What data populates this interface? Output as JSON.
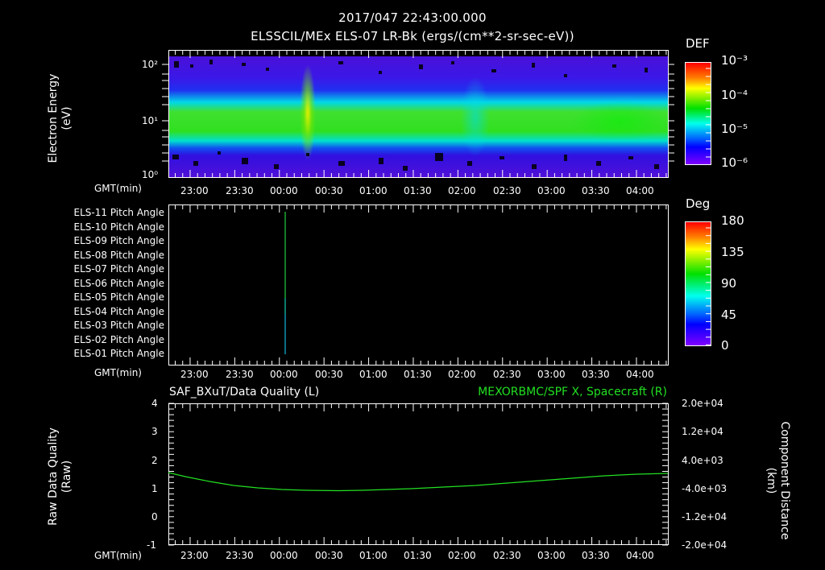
{
  "header": {
    "timestamp": "2017/047 22:43:00.000",
    "subtitle": "ELSSCIL/MEx ELS-07 LR-Bk  (ergs/(cm**2-sr-sec-eV))"
  },
  "panels": {
    "spectrogram": {
      "ylabel_line1": "Electron Energy",
      "ylabel_line2": "(eV)",
      "yticks": [
        "10²",
        "10¹",
        "10⁰"
      ],
      "xlabel": "GMT(min)",
      "colorbar_title": "DEF",
      "colorbar_ticks": [
        "10⁻³",
        "10⁻⁴",
        "10⁻⁵",
        "10⁻⁶"
      ]
    },
    "pitch_angle": {
      "row_labels": [
        "ELS-11 Pitch Angle",
        "ELS-10 Pitch Angle",
        "ELS-09 Pitch Angle",
        "ELS-08 Pitch Angle",
        "ELS-07 Pitch Angle",
        "ELS-06 Pitch Angle",
        "ELS-05 Pitch Angle",
        "ELS-04 Pitch Angle",
        "ELS-03 Pitch Angle",
        "ELS-02 Pitch Angle",
        "ELS-01 Pitch Angle"
      ],
      "xlabel": "GMT(min)",
      "colorbar_title": "Deg",
      "colorbar_ticks": [
        "180",
        "135",
        "90",
        "45",
        "0"
      ]
    },
    "quality": {
      "left_title": "SAF_BXuT/Data Quality (L)",
      "right_title": "MEXORBMC/SPF X, Spacecraft (R)",
      "right_title_color": "#22e022",
      "ylabel_line1": "Raw Data Quality",
      "ylabel_line2": "(Raw)",
      "left_yticks": [
        "4",
        "3",
        "2",
        "1",
        "0",
        "-1"
      ],
      "right_yticks": [
        "2.0e+04",
        "1.2e+04",
        "4.0e+03",
        "-4.0e+03",
        "-1.2e+04",
        "-2.0e+04"
      ],
      "rlabel_line1": "Component Distance",
      "rlabel_line2": "(km)",
      "xlabel": "GMT(min)"
    }
  },
  "time_ticks": [
    "23:00",
    "23:30",
    "00:00",
    "00:30",
    "01:00",
    "01:30",
    "02:00",
    "02:30",
    "03:00",
    "03:30",
    "04:00"
  ],
  "chart_data": [
    {
      "type": "heatmap",
      "title": "ELSSCIL/MEx ELS-07 LR-Bk (ergs/(cm**2-sr-sec-eV))",
      "xlabel": "GMT(min)",
      "ylabel": "Electron Energy (eV)",
      "x_range": [
        "22:43",
        "04:09"
      ],
      "ylim": [
        1,
        180
      ],
      "yscale": "log",
      "colorbar": {
        "label": "DEF",
        "range": [
          1e-06,
          0.001
        ],
        "scale": "log"
      },
      "features": [
        {
          "desc": "persistent band ~4-25 eV peaking near 10 eV at ~1e-4 DEF"
        },
        {
          "desc": "enhancement near 00:10 extending to ~100 eV"
        },
        {
          "desc": "band thinning near 01:50"
        }
      ]
    },
    {
      "type": "heatmap",
      "title": "ELS Pitch Angle",
      "xlabel": "GMT(min)",
      "categories": [
        "ELS-11",
        "ELS-10",
        "ELS-09",
        "ELS-08",
        "ELS-07",
        "ELS-06",
        "ELS-05",
        "ELS-04",
        "ELS-03",
        "ELS-02",
        "ELS-01"
      ],
      "colorbar": {
        "label": "Deg",
        "range": [
          0,
          180
        ]
      },
      "values_at_0000": [
        95,
        95,
        95,
        95,
        93,
        92,
        88,
        75,
        65,
        62,
        60
      ]
    },
    {
      "type": "line",
      "title": "MEXORBMC/SPF X, Spacecraft (R)",
      "xlabel": "GMT(min)",
      "ylabel": "Component Distance (km)",
      "ylim": [
        -20000,
        20000
      ],
      "left_ylabel": "Raw Data Quality (Raw)",
      "left_ylim": [
        -1,
        4
      ],
      "x": [
        "22:43",
        "23:00",
        "23:30",
        "00:00",
        "00:30",
        "01:00",
        "01:30",
        "02:00",
        "02:30",
        "03:00",
        "03:30",
        "04:00",
        "04:09"
      ],
      "series": [
        {
          "name": "SPF X",
          "values": [
            1600,
            600,
            -1800,
            -3300,
            -3900,
            -3900,
            -3600,
            -2900,
            -1900,
            -600,
            800,
            1900,
            1400
          ]
        }
      ]
    }
  ]
}
